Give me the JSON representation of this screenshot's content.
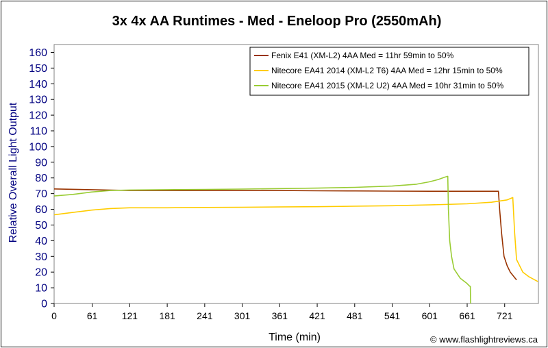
{
  "chart_data": {
    "type": "line",
    "title": "3x 4x AA Runtimes - Med - Eneloop Pro (2550mAh)",
    "xlabel": "Time (min)",
    "ylabel": "Relative Overall Light Output",
    "xlim": [
      0,
      775
    ],
    "ylim": [
      0,
      165
    ],
    "x_ticks": [
      0,
      61,
      121,
      181,
      241,
      301,
      361,
      421,
      481,
      541,
      601,
      661,
      721
    ],
    "y_ticks": [
      0,
      10,
      20,
      30,
      40,
      50,
      60,
      70,
      80,
      90,
      100,
      110,
      120,
      130,
      140,
      150,
      160
    ],
    "grid": false,
    "legend_position": "top-right",
    "copyright": "© www.flashlightreviews.ca",
    "series": [
      {
        "name": "Fenix E41 (XM-L2) 4AA Med = 11hr 59min to 50%",
        "color": "#993300",
        "x": [
          0,
          60,
          120,
          181,
          241,
          301,
          361,
          421,
          481,
          541,
          601,
          661,
          700,
          711,
          713,
          716,
          720,
          725,
          730,
          740
        ],
        "y": [
          73,
          72.5,
          72,
          72,
          72,
          72,
          72,
          71.8,
          71.7,
          71.6,
          71.5,
          71.5,
          71.5,
          71.5,
          60,
          45,
          30,
          24,
          20,
          15
        ]
      },
      {
        "name": "Nitecore EA41 2014 (XM-L2 T6) 4AA Med = 12hr 15min to 50%",
        "color": "#FFCC00",
        "x": [
          0,
          30,
          60,
          90,
          121,
          181,
          241,
          301,
          361,
          421,
          481,
          541,
          601,
          661,
          700,
          725,
          734,
          737,
          740,
          750,
          760,
          774
        ],
        "y": [
          56.5,
          58,
          59.5,
          60.5,
          61,
          61,
          61.2,
          61.3,
          61.5,
          61.7,
          62,
          62.3,
          62.8,
          63.5,
          64.5,
          66,
          67.5,
          45,
          28,
          20,
          17,
          14
        ]
      },
      {
        "name": "Nitecore EA41 2015 (XM-L2 U2) 4AA Med = 10hr 31min to 50%",
        "color": "#99CC33",
        "x": [
          0,
          30,
          60,
          90,
          121,
          181,
          241,
          301,
          361,
          421,
          481,
          541,
          580,
          600,
          615,
          625,
          630,
          631,
          633,
          636,
          640,
          650,
          660,
          665,
          666,
          666.5
        ],
        "y": [
          68.5,
          69.5,
          71,
          72,
          72.3,
          72.5,
          72.7,
          72.9,
          73.2,
          73.5,
          74,
          74.8,
          76,
          77.5,
          79,
          80.5,
          81,
          60,
          40,
          30,
          22,
          16,
          13,
          11,
          11,
          0
        ]
      }
    ]
  }
}
